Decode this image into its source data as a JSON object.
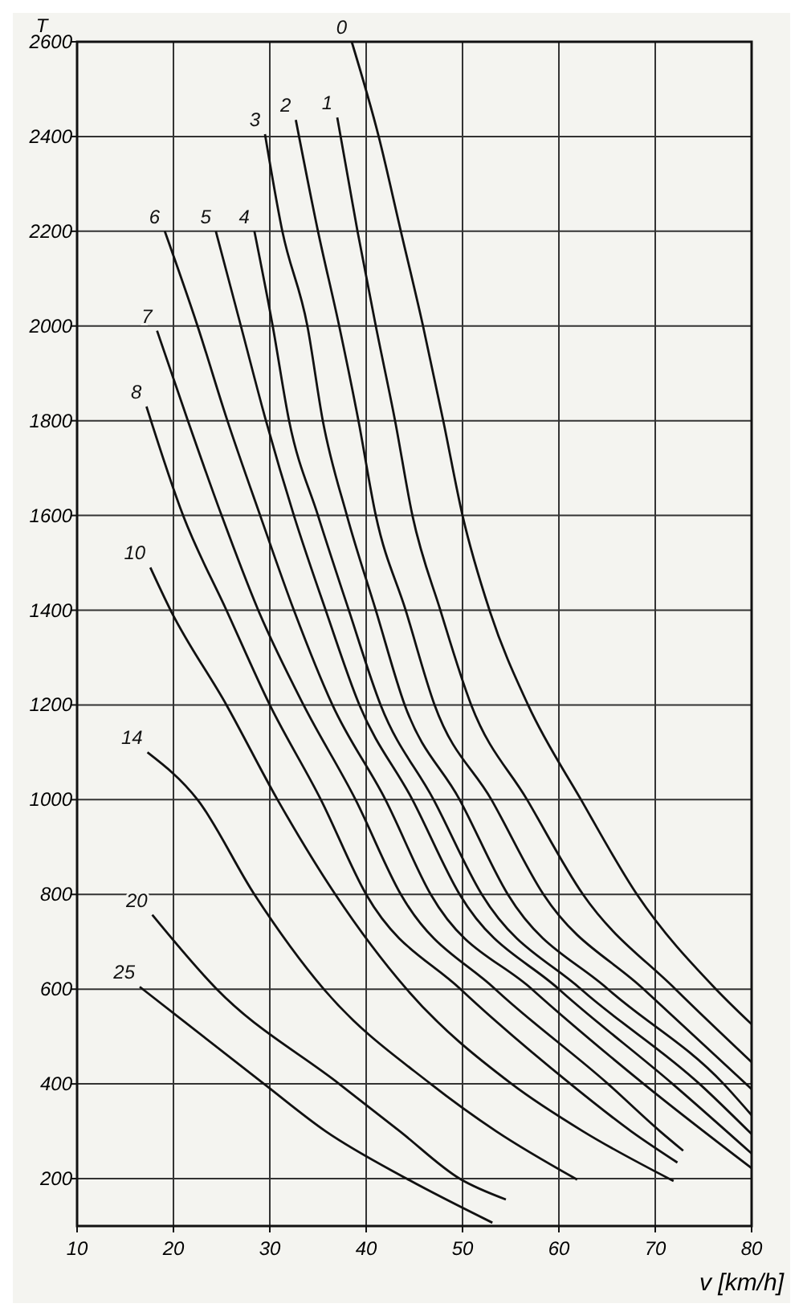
{
  "chart_data": {
    "type": "line",
    "xlabel": "v [km/h]",
    "ylabel": "T",
    "xlim": [
      10,
      80
    ],
    "ylim": [
      100,
      2600
    ],
    "xticks": [
      10,
      20,
      30,
      40,
      50,
      60,
      70,
      80
    ],
    "yticks": [
      200,
      400,
      600,
      800,
      1000,
      1200,
      1400,
      1600,
      1800,
      2000,
      2200,
      2400,
      2600
    ],
    "grid": true,
    "marker": "none",
    "line_style": "solid",
    "series": [
      {
        "name": "0",
        "color": "#111111",
        "x": [
          38.5,
          41.3,
          43.6,
          45.9,
          48,
          50,
          52.8,
          56.8,
          62.3,
          68.1,
          76.3,
          80
        ],
        "values": [
          2600,
          2400,
          2200,
          2000,
          1800,
          1600,
          1400,
          1200,
          1000,
          800,
          600,
          526
        ]
      },
      {
        "name": "1",
        "color": "#111111",
        "x": [
          37,
          39.1,
          41,
          43,
          44.8,
          47.7,
          50.9,
          56.7,
          62.5,
          72.1,
          80
        ],
        "values": [
          2440,
          2200,
          2000,
          1800,
          1600,
          1400,
          1200,
          1000,
          800,
          600,
          446
        ]
      },
      {
        "name": "2",
        "color": "#111111",
        "x": [
          32.7,
          35,
          37.2,
          39.2,
          41,
          44.1,
          47.1,
          53,
          58.4,
          68.8,
          80
        ],
        "values": [
          2435,
          2200,
          2000,
          1800,
          1600,
          1400,
          1200,
          1000,
          800,
          600,
          389
        ]
      },
      {
        "name": "3",
        "color": "#111111",
        "x": [
          29.5,
          31.3,
          33.9,
          35.5,
          38,
          41,
          44,
          49.7,
          54.7,
          65.1,
          77.1,
          80
        ],
        "values": [
          2405,
          2200,
          2000,
          1800,
          1600,
          1400,
          1200,
          1000,
          800,
          600,
          400,
          334
        ]
      },
      {
        "name": "4",
        "color": "#111111",
        "x": [
          28.4,
          30.3,
          32,
          35,
          38.2,
          41.5,
          47,
          52,
          62.3,
          74.6,
          80
        ],
        "values": [
          2200,
          2000,
          1800,
          1600,
          1400,
          1200,
          1000,
          800,
          600,
          400,
          294
        ]
      },
      {
        "name": "5",
        "color": "#111111",
        "x": [
          24.4,
          27,
          29.6,
          32.5,
          35.8,
          39.3,
          44.8,
          49.7,
          60,
          71.8,
          80
        ],
        "values": [
          2200,
          2000,
          1800,
          1600,
          1400,
          1200,
          1000,
          800,
          600,
          400,
          253
        ]
      },
      {
        "name": "6",
        "color": "#111111",
        "x": [
          19.1,
          22.5,
          25.6,
          29,
          32.5,
          36.5,
          42,
          46.7,
          57.2,
          68.8,
          80
        ],
        "values": [
          2200,
          2000,
          1800,
          1600,
          1400,
          1200,
          1000,
          800,
          600,
          400,
          222
        ]
      },
      {
        "name": "7",
        "color": "#111111",
        "x": [
          18.3,
          21.5,
          25,
          28.8,
          33.5,
          38.9,
          43.6,
          53.4,
          65.1,
          70.5,
          72.9
        ],
        "values": [
          1990,
          1800,
          1600,
          1400,
          1200,
          1000,
          800,
          600,
          400,
          300,
          259
        ]
      },
      {
        "name": "8",
        "color": "#111111",
        "x": [
          17.2,
          21,
          25.5,
          30,
          35.3,
          40,
          49.8,
          61.2,
          67.5,
          72.3
        ],
        "values": [
          1830,
          1600,
          1400,
          1200,
          1000,
          800,
          600,
          400,
          300,
          234
        ]
      },
      {
        "name": "10",
        "color": "#111111",
        "x": [
          17.6,
          19.7,
          25.5,
          30.8,
          36.8,
          44.2,
          55.1,
          62.5,
          71.9
        ],
        "values": [
          1490,
          1400,
          1200,
          1000,
          800,
          600,
          400,
          300,
          195
        ]
      },
      {
        "name": "14",
        "color": "#111111",
        "x": [
          17.3,
          22.5,
          28.4,
          35.6,
          46.7,
          53.5,
          61.9
        ],
        "values": [
          1100,
          1000,
          800,
          600,
          400,
          300,
          198
        ]
      },
      {
        "name": "20",
        "color": "#111111",
        "x": [
          17.8,
          24.5,
          37.2,
          43.5,
          49.7,
          54.5
        ],
        "values": [
          757,
          600,
          400,
          300,
          200,
          156
        ]
      },
      {
        "name": "25",
        "color": "#111111",
        "x": [
          16.5,
          29.4,
          35.8,
          44.2,
          53.1
        ],
        "values": [
          605,
          400,
          300,
          200,
          107
        ]
      }
    ]
  }
}
